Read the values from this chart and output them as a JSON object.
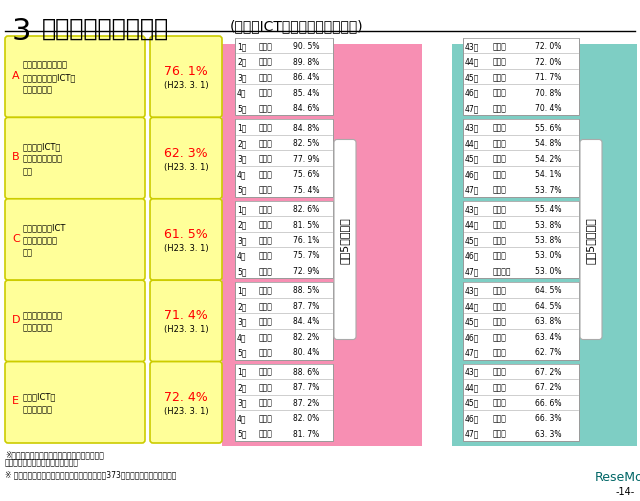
{
  "title_number": "3",
  "title_main": "上位・下位都道府県",
  "title_sub": "(教員のICT活用指導力・全校種)",
  "bg_color": "#ffffff",
  "pink_bg": "#f78fb3",
  "green_bg": "#7ecec4",
  "yellow_bg": "#ffff99",
  "yellow_border": "#cccc00",
  "categories": [
    {
      "label": "A",
      "desc": "教材研究・指導の準\n備・評価などにICTを\n活用する能力",
      "percent": "76. 1%",
      "date": "(H23. 3. 1)",
      "top5": [
        [
          "1位",
          "三重県",
          "90. 5%"
        ],
        [
          "2位",
          "愛媛県",
          "89. 8%"
        ],
        [
          "3位",
          "高知県",
          "86. 4%"
        ],
        [
          "4位",
          "沖縄県",
          "85. 4%"
        ],
        [
          "5位",
          "茨城県",
          "84. 6%"
        ]
      ],
      "bottom5": [
        [
          "43位",
          "東京都",
          "72. 0%"
        ],
        [
          "44位",
          "宮崎県",
          "72. 0%"
        ],
        [
          "45位",
          "大阪府",
          "71. 7%"
        ],
        [
          "46位",
          "滋賀県",
          "70. 8%"
        ],
        [
          "47位",
          "奈良県",
          "70. 4%"
        ]
      ]
    },
    {
      "label": "B",
      "desc": "授業中にICTを\n活用して指導する\n能力",
      "percent": "62. 3%",
      "date": "(H23. 3. 1)",
      "top5": [
        [
          "1位",
          "三重県",
          "84. 8%"
        ],
        [
          "2位",
          "愛媛県",
          "82. 5%"
        ],
        [
          "3位",
          "高知県",
          "77. 9%"
        ],
        [
          "4位",
          "岡山県",
          "75. 6%"
        ],
        [
          "5位",
          "茨城県",
          "75. 4%"
        ]
      ],
      "bottom5": [
        [
          "43位",
          "青森県",
          "55. 6%"
        ],
        [
          "44位",
          "山形県",
          "54. 8%"
        ],
        [
          "45位",
          "奈良県",
          "54. 2%"
        ],
        [
          "46位",
          "滋賀県",
          "54. 1%"
        ],
        [
          "47位",
          "島根県",
          "53. 7%"
        ]
      ]
    },
    {
      "label": "C",
      "desc": "児童・生徒のICT\n活用を指導する\n能力",
      "percent": "61. 5%",
      "date": "(H23. 3. 1)",
      "top5": [
        [
          "1位",
          "三重県",
          "82. 6%"
        ],
        [
          "2位",
          "愛媛県",
          "81. 5%"
        ],
        [
          "3位",
          "高知県",
          "76. 1%"
        ],
        [
          "4位",
          "茨城県",
          "75. 7%"
        ],
        [
          "5位",
          "岡山県",
          "72. 9%"
        ]
      ],
      "bottom5": [
        [
          "43位",
          "富山県",
          "55. 4%"
        ],
        [
          "44位",
          "奈良県",
          "53. 8%"
        ],
        [
          "45位",
          "愛知県",
          "53. 8%"
        ],
        [
          "46位",
          "滋賀県",
          "53. 0%"
        ],
        [
          "47位",
          "神奈川県",
          "53. 0%"
        ]
      ]
    },
    {
      "label": "D",
      "desc": "情報モラルなどを\n指導する能力",
      "percent": "71. 4%",
      "date": "(H23. 3. 1)",
      "top5": [
        [
          "1位",
          "三重県",
          "88. 5%"
        ],
        [
          "2位",
          "愛媛県",
          "87. 7%"
        ],
        [
          "3位",
          "高知県",
          "84. 4%"
        ],
        [
          "4位",
          "茨城県",
          "82. 2%"
        ],
        [
          "5位",
          "岡山県",
          "80. 4%"
        ]
      ],
      "bottom5": [
        [
          "43位",
          "長野県",
          "64. 5%"
        ],
        [
          "44位",
          "山形県",
          "64. 5%"
        ],
        [
          "45位",
          "滋賀県",
          "63. 8%"
        ],
        [
          "46位",
          "奈良県",
          "63. 4%"
        ],
        [
          "47位",
          "富山県",
          "62. 7%"
        ]
      ]
    },
    {
      "label": "E",
      "desc": "校務にICTを\n活用する能力",
      "percent": "72. 4%",
      "date": "(H23. 3. 1)",
      "top5": [
        [
          "1位",
          "三重県",
          "88. 6%"
        ],
        [
          "2位",
          "岡山県",
          "87. 7%"
        ],
        [
          "3位",
          "愛媛県",
          "87. 2%"
        ],
        [
          "4位",
          "高知県",
          "82. 0%"
        ],
        [
          "5位",
          "茨城県",
          "81. 7%"
        ]
      ],
      "bottom5": [
        [
          "43位",
          "愛知県",
          "67. 2%"
        ],
        [
          "44位",
          "静岡県",
          "67. 2%"
        ],
        [
          "45位",
          "滋賀県",
          "66. 6%"
        ],
        [
          "46位",
          "大阪府",
          "66. 3%"
        ],
        [
          "47位",
          "奈良県",
          "63. 3%"
        ]
      ]
    }
  ],
  "footnote1": "※「わりにできる」若しくは「ややできる」と",
  "footnote2": "　回答した教員の大項目別の割合。",
  "footnote3": "※ 東日本大震災の影響による回答不可能学校（373校）を除いた数値である。",
  "label_top5": "上位5都道府県",
  "label_bottom5": "下位5都道府県"
}
